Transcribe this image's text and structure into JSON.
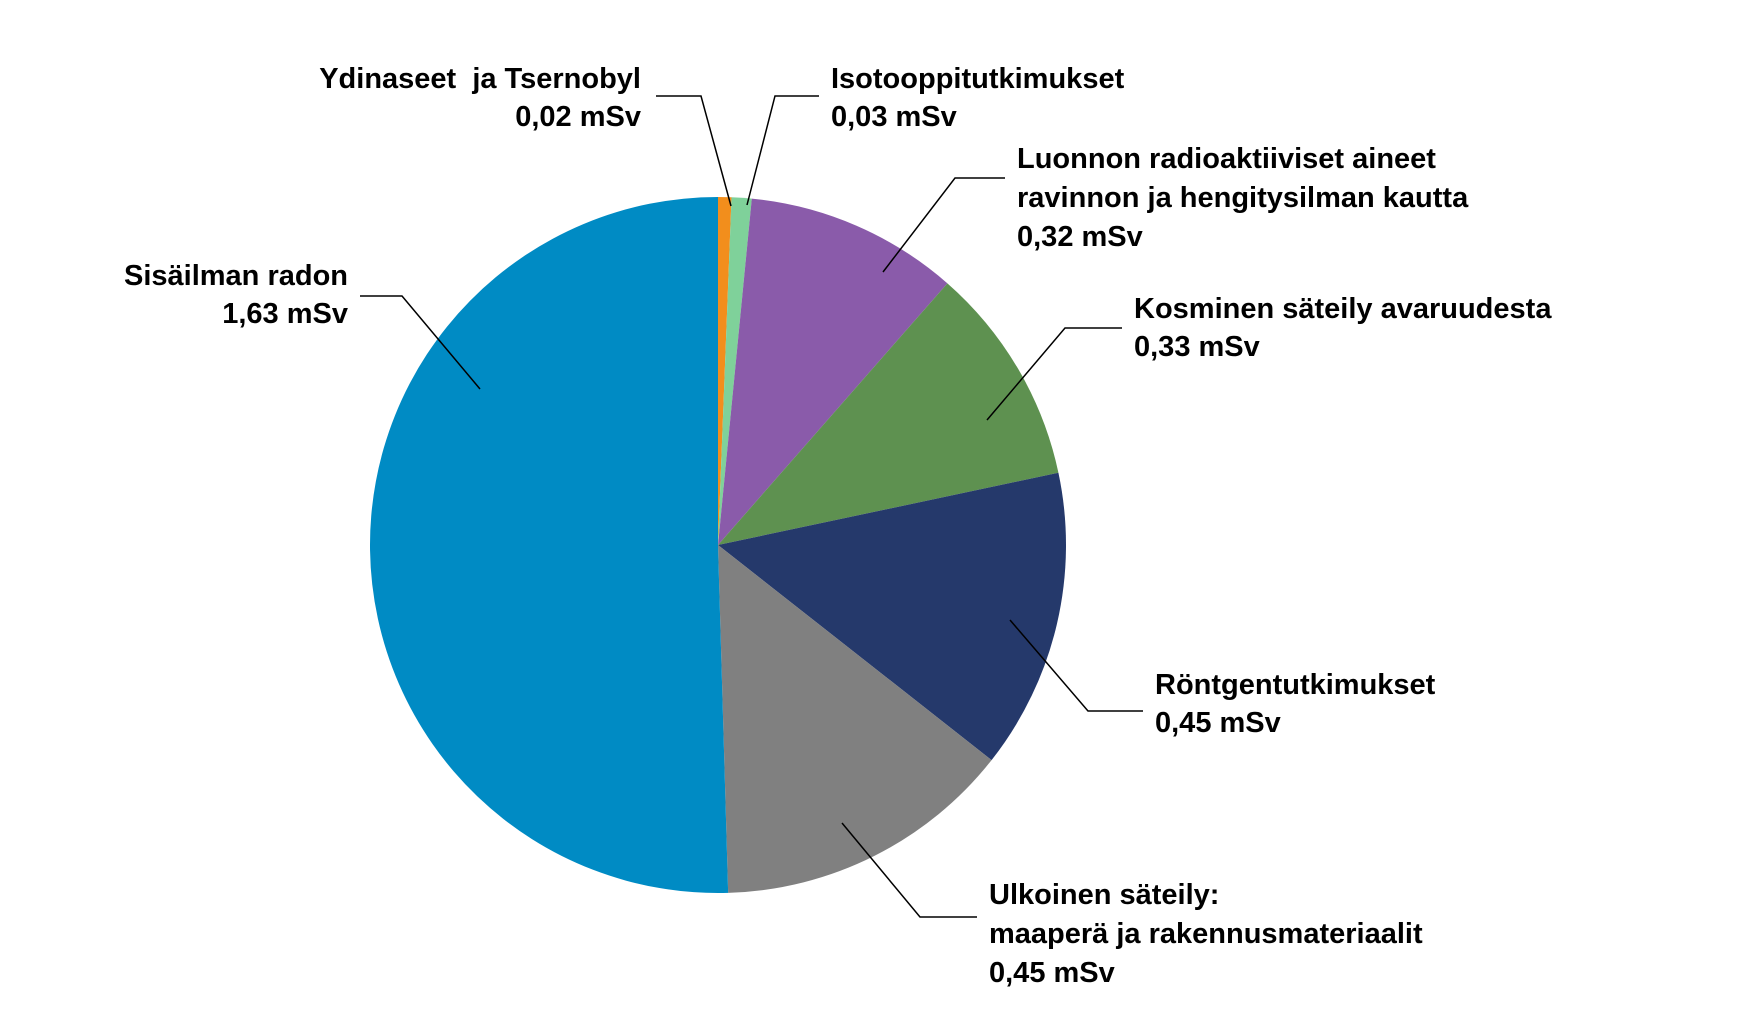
{
  "chart_data": {
    "type": "pie",
    "start": "12 o'clock",
    "direction": "clockwise",
    "slices": [
      {
        "label_lines": [
          "Ydinaseet  ja Tsernobyl"
        ],
        "value_label": "0,02 mSv",
        "value": 0.02,
        "color": "#F28E1C"
      },
      {
        "label_lines": [
          "Isotooppitutkimukset"
        ],
        "value_label": "0,03 mSv",
        "value": 0.03,
        "color": "#7FD19A"
      },
      {
        "label_lines": [
          "Luonnon radioaktiiviset aineet",
          "ravinnon ja hengitysilman kautta"
        ],
        "value_label": "0,32 mSv",
        "value": 0.32,
        "color": "#8A5BAA"
      },
      {
        "label_lines": [
          "Kosminen säteily avaruudesta"
        ],
        "value_label": "0,33 mSv",
        "value": 0.33,
        "color": "#5E9150"
      },
      {
        "label_lines": [
          "Röntgentutkimukset"
        ],
        "value_label": "0,45 mSv",
        "value": 0.45,
        "color": "#25396B"
      },
      {
        "label_lines": [
          "Ulkoinen säteily:",
          "maaperä ja rakennusmateriaalit"
        ],
        "value_label": "0,45 mSv",
        "value": 0.45,
        "color": "#808080"
      },
      {
        "label_lines": [
          "Sisäilman radon"
        ],
        "value_label": "1,63 mSv",
        "value": 1.63,
        "color": "#008BC4"
      }
    ]
  }
}
